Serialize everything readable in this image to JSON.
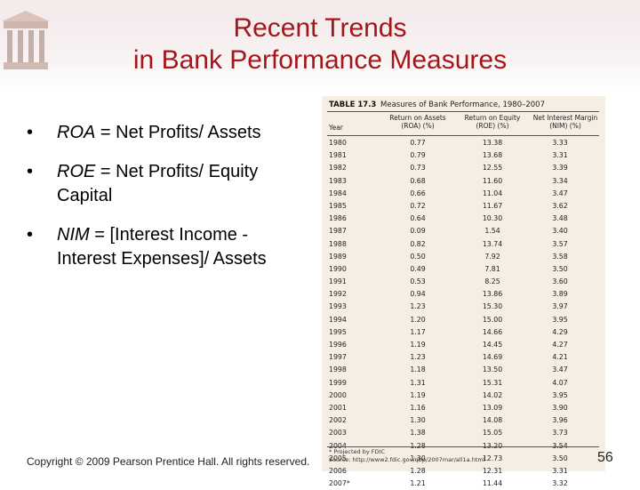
{
  "title": {
    "line1": "Recent Trends",
    "line2": "in Bank Performance Measures"
  },
  "bullets": [
    {
      "dot": "•",
      "term": "ROA",
      "rest": " = Net Profits/ Assets"
    },
    {
      "dot": "•",
      "term": "ROE",
      "rest": " = Net Profits/ Equity Capital"
    },
    {
      "dot": "•",
      "term": "NIM",
      "rest": " = [Interest Income - Interest Expenses]/ Assets"
    }
  ],
  "table": {
    "label": "TABLE 17.3",
    "caption": "Measures of Bank Performance, 1980–2007",
    "columns": [
      "Year",
      "Return on Assets (ROA) (%)",
      "Return on Equity (ROE) (%)",
      "Net Interest Margin (NIM) (%)"
    ],
    "rows": [
      [
        "1980",
        "0.77",
        "13.38",
        "3.33"
      ],
      [
        "1981",
        "0.79",
        "13.68",
        "3.31"
      ],
      [
        "1982",
        "0.73",
        "12.55",
        "3.39"
      ],
      [
        "1983",
        "0.68",
        "11.60",
        "3.34"
      ],
      [
        "1984",
        "0.66",
        "11.04",
        "3.47"
      ],
      [
        "1985",
        "0.72",
        "11.67",
        "3.62"
      ],
      [
        "1986",
        "0.64",
        "10.30",
        "3.48"
      ],
      [
        "1987",
        "0.09",
        "1.54",
        "3.40"
      ],
      [
        "1988",
        "0.82",
        "13.74",
        "3.57"
      ],
      [
        "1989",
        "0.50",
        "7.92",
        "3.58"
      ],
      [
        "1990",
        "0.49",
        "7.81",
        "3.50"
      ],
      [
        "1991",
        "0.53",
        "8.25",
        "3.60"
      ],
      [
        "1992",
        "0.94",
        "13.86",
        "3.89"
      ],
      [
        "1993",
        "1.23",
        "15.30",
        "3.97"
      ],
      [
        "1994",
        "1.20",
        "15.00",
        "3.95"
      ],
      [
        "1995",
        "1.17",
        "14.66",
        "4.29"
      ],
      [
        "1996",
        "1.19",
        "14.45",
        "4.27"
      ],
      [
        "1997",
        "1.23",
        "14.69",
        "4.21"
      ],
      [
        "1998",
        "1.18",
        "13.50",
        "3.47"
      ],
      [
        "1999",
        "1.31",
        "15.31",
        "4.07"
      ],
      [
        "2000",
        "1.19",
        "14.02",
        "3.95"
      ],
      [
        "2001",
        "1.16",
        "13.09",
        "3.90"
      ],
      [
        "2002",
        "1.30",
        "14.08",
        "3.96"
      ],
      [
        "2003",
        "1.38",
        "15.05",
        "3.73"
      ],
      [
        "2004",
        "1.28",
        "13.20",
        "3.54"
      ],
      [
        "2005",
        "1.30",
        "12.73",
        "3.50"
      ],
      [
        "2006",
        "1.28",
        "12.31",
        "3.31"
      ],
      [
        "2007*",
        "1.21",
        "11.44",
        "3.32"
      ]
    ],
    "note1": "* Projected by FDIC",
    "note2": "Source: http://www2.fdic.gov/qbp/2007mar/all1a.html"
  },
  "footer": {
    "copyright": "Copyright © 2009 Pearson Prentice Hall. All rights reserved.",
    "page_number": "56"
  }
}
